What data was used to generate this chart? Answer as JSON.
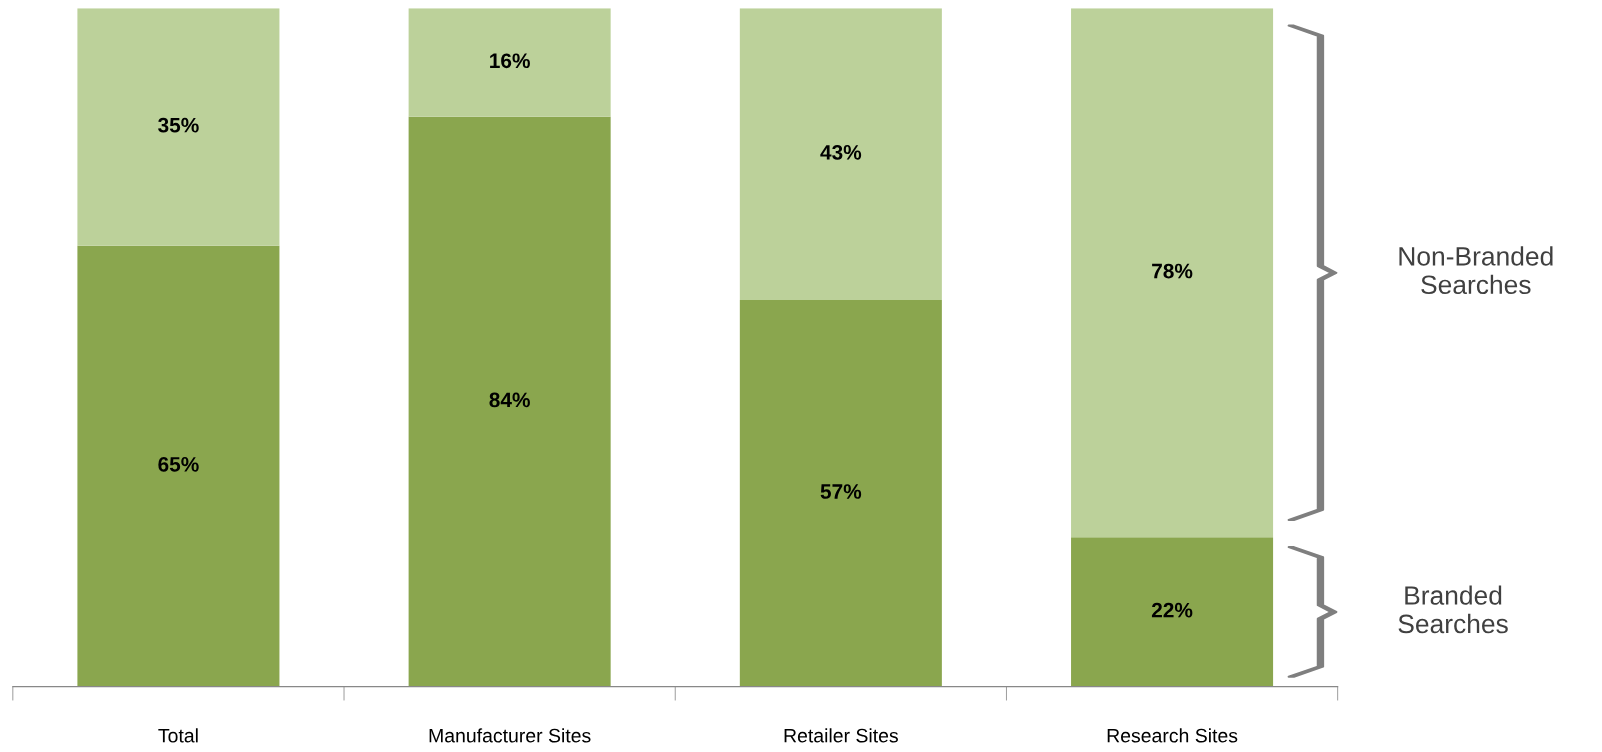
{
  "chart_data": {
    "type": "bar",
    "stacked": true,
    "categories": [
      "Total",
      "Manufacturer Sites",
      "Retailer Sites",
      "Research Sites"
    ],
    "series": [
      {
        "name": "Branded Searches",
        "color": "#8aa64e",
        "values": [
          65,
          84,
          57,
          22
        ],
        "value_labels": [
          "65%",
          "84%",
          "57%",
          "22%"
        ]
      },
      {
        "name": "Non-Branded Searches",
        "color": "#bcd19a",
        "values": [
          35,
          16,
          43,
          78
        ],
        "value_labels": [
          "35%",
          "16%",
          "43%",
          "78%"
        ]
      }
    ],
    "legend": false,
    "grid": false
  }
}
